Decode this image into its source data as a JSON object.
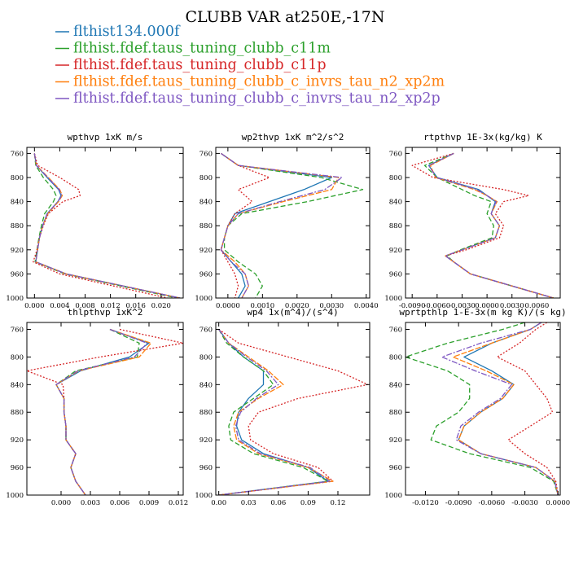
{
  "title": "CLUBB VAR at250E,-17N",
  "legend": [
    {
      "name": "flthist134.000f",
      "color": "#1f77b4"
    },
    {
      "name": "flthist.fdef.taus_tuning_clubb_c11m",
      "color": "#2ca02c"
    },
    {
      "name": "flthist.fdef.taus_tuning_clubb_c11p",
      "color": "#d62728"
    },
    {
      "name": "flthist.fdef.taus_tuning_clubb_c_invrs_tau_n2_xp2m",
      "color": "#ff7f0e"
    },
    {
      "name": "flthist.fdef.taus_tuning_clubb_c_invrs_tau_n2_xp2p",
      "color": "#7e57c2"
    }
  ],
  "chart_data": [
    {
      "type": "line",
      "title": "wpthvp  1xK m/s",
      "xlim": [
        -0.0012,
        0.0235
      ],
      "ylim": [
        1000,
        750
      ],
      "xticks": [
        "0.000",
        "0.004",
        "0.008",
        "0.012",
        "0.016",
        "0.020"
      ],
      "xtick_values": [
        0,
        0.004,
        0.008,
        0.012,
        0.016,
        0.02
      ],
      "yticks": [
        760,
        800,
        840,
        880,
        920,
        960,
        1000
      ],
      "levels": [
        760,
        780,
        800,
        820,
        830,
        840,
        860,
        880,
        900,
        920,
        940,
        960,
        1000
      ],
      "series": [
        {
          "values": [
            0.0,
            0.0003,
            0.002,
            0.0038,
            0.0042,
            0.0037,
            0.002,
            0.0013,
            0.0008,
            0.0005,
            0.0002,
            0.005,
            0.023
          ]
        },
        {
          "values": [
            0.0,
            0.0002,
            0.0014,
            0.003,
            0.0034,
            0.003,
            0.0016,
            0.0011,
            0.0007,
            0.0004,
            0.0001,
            0.0048,
            0.0225
          ]
        },
        {
          "values": [
            0.0,
            0.0005,
            0.004,
            0.007,
            0.0072,
            0.0045,
            0.0022,
            0.0014,
            0.0008,
            0.0004,
            -0.0002,
            0.004,
            0.021
          ]
        },
        {
          "values": [
            0.0,
            0.0003,
            0.0022,
            0.004,
            0.0044,
            0.0038,
            0.0021,
            0.0013,
            0.0008,
            0.0005,
            0.0002,
            0.005,
            0.023
          ]
        },
        {
          "values": [
            0.0,
            0.0003,
            0.0021,
            0.0039,
            0.0043,
            0.0037,
            0.002,
            0.0013,
            0.0008,
            0.0005,
            0.0002,
            0.005,
            0.023
          ]
        }
      ]
    },
    {
      "type": "line",
      "title": "wp2thvp  1xK m^2/s^2",
      "xlim": [
        -0.00035,
        0.0041
      ],
      "ylim": [
        1000,
        750
      ],
      "xticks": [
        "0.0000",
        "0.0010",
        "0.0020",
        "0.0030",
        "0.0040"
      ],
      "xtick_values": [
        0,
        0.001,
        0.002,
        0.003,
        0.004
      ],
      "yticks": [
        760,
        800,
        840,
        880,
        920,
        960,
        1000
      ],
      "levels": [
        760,
        780,
        800,
        820,
        840,
        860,
        880,
        900,
        920,
        940,
        960,
        980,
        1000
      ],
      "series": [
        {
          "values": [
            -0.0002,
            0.0003,
            0.003,
            0.0022,
            0.0012,
            0.0002,
            0.0,
            -0.0001,
            -0.0002,
            0.0001,
            0.0004,
            0.0005,
            0.0003
          ]
        },
        {
          "values": [
            -0.0002,
            0.0003,
            0.0027,
            0.0039,
            0.0023,
            0.0004,
            0.0,
            -0.0001,
            -0.0001,
            0.0003,
            0.0008,
            0.001,
            0.0008
          ]
        },
        {
          "values": [
            -0.0002,
            0.0003,
            0.0012,
            0.0003,
            0.0007,
            0.0002,
            0.0,
            -0.0001,
            -0.0002,
            0.0,
            0.0002,
            0.0003,
            0.0002
          ]
        },
        {
          "values": [
            -0.0002,
            0.0003,
            0.0032,
            0.003,
            0.0016,
            0.0003,
            0.0,
            -0.0001,
            -0.0002,
            0.0002,
            0.0005,
            0.0006,
            0.0004
          ]
        },
        {
          "values": [
            -0.0002,
            0.0003,
            0.0033,
            0.0028,
            0.0015,
            0.0003,
            0.0,
            -0.0001,
            -0.0002,
            0.0001,
            0.0005,
            0.0006,
            0.0004
          ]
        }
      ]
    },
    {
      "type": "line",
      "title": "rtpthvp  1E-3x(kg/kg) K",
      "xlim": [
        -0.0098,
        0.0088
      ],
      "ylim": [
        1000,
        750
      ],
      "xticks": [
        "-0.0090",
        "-0.0060",
        "-0.0030",
        "0.0000",
        "0.0030",
        "0.0060"
      ],
      "xtick_values": [
        -0.009,
        -0.006,
        -0.003,
        0,
        0.003,
        0.006
      ],
      "yticks": [
        760,
        800,
        840,
        880,
        920,
        960,
        1000
      ],
      "levels": [
        760,
        780,
        800,
        820,
        830,
        840,
        860,
        880,
        900,
        920,
        930,
        940,
        960,
        1000
      ],
      "series": [
        {
          "values": [
            -0.004,
            -0.007,
            -0.006,
            -0.001,
            0.0,
            0.001,
            0.0005,
            0.0015,
            0.001,
            -0.003,
            -0.005,
            -0.004,
            -0.002,
            0.008
          ]
        },
        {
          "values": [
            -0.004,
            -0.0075,
            -0.006,
            -0.003,
            -0.0015,
            0.0005,
            0.0,
            0.0008,
            0.0006,
            -0.0032,
            -0.0048,
            -0.004,
            -0.002,
            0.008
          ]
        },
        {
          "values": [
            -0.004,
            -0.009,
            -0.0065,
            0.002,
            0.005,
            0.002,
            0.001,
            0.002,
            0.0015,
            -0.0025,
            -0.005,
            -0.004,
            -0.002,
            0.008
          ]
        },
        {
          "values": [
            -0.004,
            -0.0068,
            -0.0062,
            -0.0015,
            0.0,
            0.0012,
            0.0005,
            0.0015,
            0.001,
            -0.003,
            -0.005,
            -0.004,
            -0.002,
            0.008
          ]
        },
        {
          "values": [
            -0.004,
            -0.007,
            -0.0061,
            -0.0012,
            0.0,
            0.0011,
            0.0005,
            0.0015,
            0.001,
            -0.003,
            -0.005,
            -0.004,
            -0.002,
            0.008
          ]
        }
      ]
    },
    {
      "type": "line",
      "title": "thlpthvp  1xK^2",
      "xlim": [
        -0.0035,
        0.0125
      ],
      "ylim": [
        1000,
        750
      ],
      "xticks": [
        "0.000",
        "0.003",
        "0.006",
        "0.009",
        "0.012"
      ],
      "xtick_values": [
        0,
        0.003,
        0.006,
        0.009,
        0.012
      ],
      "yticks": [
        760,
        800,
        840,
        880,
        920,
        960,
        1000
      ],
      "levels": [
        760,
        780,
        800,
        820,
        840,
        860,
        880,
        900,
        920,
        940,
        960,
        980,
        1000
      ],
      "series": [
        {
          "values": [
            0.005,
            0.009,
            0.007,
            0.002,
            -0.0005,
            0.0003,
            0.0003,
            0.0005,
            0.0005,
            0.0015,
            0.001,
            0.0015,
            0.0025
          ]
        },
        {
          "values": [
            0.005,
            0.008,
            0.0078,
            0.0015,
            -0.0005,
            0.0003,
            0.0003,
            0.0005,
            0.0005,
            0.0015,
            0.001,
            0.0015,
            0.0025
          ]
        },
        {
          "values": [
            0.006,
            0.0125,
            0.004,
            -0.0035,
            0.0002,
            0.0003,
            0.0003,
            0.0005,
            0.0005,
            0.0015,
            0.001,
            0.0015,
            0.0025
          ]
        },
        {
          "values": [
            0.005,
            0.0092,
            0.008,
            0.0018,
            -0.0005,
            0.0003,
            0.0003,
            0.0005,
            0.0005,
            0.0015,
            0.001,
            0.0015,
            0.0025
          ]
        },
        {
          "values": [
            0.005,
            0.0088,
            0.0075,
            0.0017,
            -0.0005,
            0.0003,
            0.0003,
            0.0005,
            0.0005,
            0.0015,
            0.001,
            0.0015,
            0.0025
          ]
        }
      ]
    },
    {
      "type": "line",
      "title": "wp4  1x(m^4)/(s^4)",
      "xlim": [
        -0.003,
        0.152
      ],
      "ylim": [
        1000,
        750
      ],
      "xticks": [
        "0.00",
        "0.03",
        "0.06",
        "0.09",
        "0.12"
      ],
      "xtick_values": [
        0,
        0.03,
        0.06,
        0.09,
        0.12
      ],
      "yticks": [
        760,
        800,
        840,
        880,
        920,
        960,
        1000
      ],
      "levels": [
        760,
        780,
        800,
        820,
        840,
        860,
        880,
        900,
        920,
        940,
        960,
        980,
        1000
      ],
      "series": [
        {
          "values": [
            0.0,
            0.01,
            0.025,
            0.045,
            0.045,
            0.03,
            0.02,
            0.018,
            0.023,
            0.045,
            0.09,
            0.11,
            0.0
          ]
        },
        {
          "values": [
            0.0,
            0.008,
            0.025,
            0.045,
            0.055,
            0.035,
            0.015,
            0.01,
            0.012,
            0.035,
            0.085,
            0.11,
            0.0
          ]
        },
        {
          "values": [
            0.0,
            0.02,
            0.07,
            0.12,
            0.15,
            0.08,
            0.04,
            0.03,
            0.032,
            0.055,
            0.1,
            0.115,
            0.0
          ]
        },
        {
          "values": [
            0.0,
            0.01,
            0.03,
            0.05,
            0.065,
            0.04,
            0.02,
            0.015,
            0.018,
            0.04,
            0.09,
            0.115,
            0.0
          ]
        },
        {
          "values": [
            0.0,
            0.01,
            0.028,
            0.048,
            0.06,
            0.038,
            0.022,
            0.017,
            0.02,
            0.042,
            0.092,
            0.112,
            0.0
          ]
        }
      ]
    },
    {
      "type": "line",
      "title": "wprtpthlp  1-E-3x(m kg K)/(s kg)",
      "xlim": [
        -0.0138,
        0.0002
      ],
      "ylim": [
        1000,
        750
      ],
      "xticks": [
        "-0.0120",
        "-0.0090",
        "-0.0060",
        "-0.0030",
        "0.0000"
      ],
      "xtick_values": [
        -0.012,
        -0.009,
        -0.006,
        -0.003,
        0
      ],
      "yticks": [
        760,
        800,
        840,
        880,
        920,
        960,
        1000
      ],
      "levels": [
        750,
        760,
        780,
        800,
        820,
        840,
        860,
        880,
        900,
        920,
        940,
        960,
        980,
        1000
      ],
      "series": [
        {
          "values": [
            -0.0015,
            -0.0025,
            -0.006,
            -0.0085,
            -0.006,
            -0.004,
            -0.005,
            -0.007,
            -0.0085,
            -0.009,
            -0.007,
            -0.002,
            -0.0003,
            0.0
          ]
        },
        {
          "values": [
            -0.003,
            -0.005,
            -0.01,
            -0.0138,
            -0.01,
            -0.008,
            -0.008,
            -0.009,
            -0.011,
            -0.0115,
            -0.008,
            -0.0025,
            -0.0004,
            0.0
          ]
        },
        {
          "values": [
            -0.001,
            -0.002,
            -0.0035,
            -0.0055,
            -0.003,
            -0.002,
            -0.001,
            -0.0005,
            -0.0025,
            -0.0045,
            -0.003,
            -0.001,
            -0.0002,
            0.0
          ]
        },
        {
          "values": [
            -0.0015,
            -0.0025,
            -0.006,
            -0.0095,
            -0.0065,
            -0.004,
            -0.005,
            -0.007,
            -0.0085,
            -0.009,
            -0.007,
            -0.002,
            -0.0003,
            0.0
          ]
        },
        {
          "values": [
            -0.0015,
            -0.0025,
            -0.007,
            -0.0105,
            -0.0075,
            -0.0042,
            -0.0052,
            -0.0072,
            -0.0088,
            -0.0092,
            -0.007,
            -0.002,
            -0.0003,
            0.0
          ]
        }
      ]
    }
  ]
}
